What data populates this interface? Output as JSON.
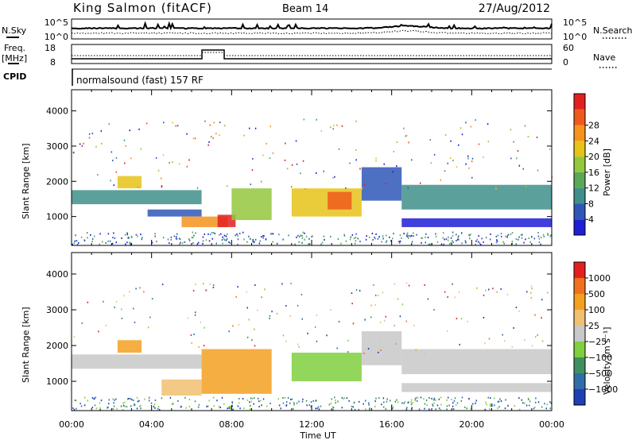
{
  "header": {
    "station": "King Salmon (fitACF)",
    "beam": "Beam 14",
    "date": "27/Aug/2012"
  },
  "nsky_panel": {
    "label_left": "N.Sky",
    "label_right": "N.Search",
    "left_ticks": [
      "10^5",
      "10^0"
    ],
    "right_ticks": [
      "10^5",
      "10^0"
    ]
  },
  "freq_panel": {
    "label_left_1": "Freq.",
    "label_left_2": "[MHz]",
    "label_right": "Nave",
    "left_ticks": [
      "18",
      "8"
    ],
    "right_ticks": [
      "60",
      "0"
    ]
  },
  "cpid": {
    "label": "CPID",
    "text": "normalsound (fast) 157 RF"
  },
  "chart_data": [
    {
      "type": "heatmap",
      "name": "power",
      "ylabel": "Slant Range [km]",
      "ylim": [
        180,
        4600
      ],
      "yticks": [
        "1000",
        "2000",
        "3000",
        "4000"
      ],
      "xlim_hours": [
        0,
        24
      ],
      "xticks": [
        "00:00",
        "04:00",
        "08:00",
        "12:00",
        "16:00",
        "20:00",
        "00:00"
      ],
      "colorbar": {
        "label": "Power [dB]",
        "ticks": [
          "4",
          "8",
          "12",
          "16",
          "20",
          "24",
          "28"
        ],
        "colors": [
          "#1f1fd6",
          "#2f57b8",
          "#3f8f8a",
          "#5aa856",
          "#93c73d",
          "#e6c319",
          "#f5931d",
          "#ef5a1c",
          "#e22020"
        ]
      },
      "regions": [
        {
          "hours": [
            0.0,
            6.5
          ],
          "range_km": [
            1350,
            1750
          ],
          "level": 2
        },
        {
          "hours": [
            2.3,
            3.5
          ],
          "range_km": [
            1800,
            2150
          ],
          "level": 5
        },
        {
          "hours": [
            3.8,
            6.5
          ],
          "range_km": [
            1000,
            1200
          ],
          "level": 1
        },
        {
          "hours": [
            5.5,
            7.8
          ],
          "range_km": [
            700,
            1000
          ],
          "level": 6
        },
        {
          "hours": [
            7.3,
            8.2
          ],
          "range_km": [
            700,
            1050
          ],
          "level": 8
        },
        {
          "hours": [
            8.0,
            10.0
          ],
          "range_km": [
            900,
            1800
          ],
          "level": 4
        },
        {
          "hours": [
            11.0,
            14.5
          ],
          "range_km": [
            1000,
            1800
          ],
          "level": 5
        },
        {
          "hours": [
            12.8,
            14.0
          ],
          "range_km": [
            1200,
            1700
          ],
          "level": 7
        },
        {
          "hours": [
            14.5,
            16.5
          ],
          "range_km": [
            1450,
            2400
          ],
          "level": 1
        },
        {
          "hours": [
            16.5,
            24.0
          ],
          "range_km": [
            1200,
            1900
          ],
          "level": 2
        },
        {
          "hours": [
            16.5,
            24.0
          ],
          "range_km": [
            700,
            950
          ],
          "level": 0
        }
      ]
    },
    {
      "type": "heatmap",
      "name": "velocity",
      "ylabel": "Slant Range [km]",
      "ylim": [
        180,
        4600
      ],
      "yticks": [
        "1000",
        "2000",
        "3000",
        "4000"
      ],
      "xlim_hours": [
        0,
        24
      ],
      "xticks": [
        "00:00",
        "04:00",
        "08:00",
        "12:00",
        "16:00",
        "20:00",
        "00:00"
      ],
      "xlabel": "Time UT",
      "colorbar": {
        "label": "Velocity [m s⁻¹]",
        "ticks": [
          "1000",
          "500",
          "100",
          "25",
          "−25",
          "−100",
          "−500",
          "−1000"
        ],
        "colors": [
          "#1f3fb4",
          "#2f6ea8",
          "#3f8f5f",
          "#7fcf3f",
          "#c8c8c8",
          "#f0c070",
          "#f3a020",
          "#f07020",
          "#e22020"
        ]
      },
      "regions": [
        {
          "hours": [
            0.0,
            6.5
          ],
          "range_km": [
            1350,
            1750
          ],
          "level": 4
        },
        {
          "hours": [
            2.3,
            3.5
          ],
          "range_km": [
            1800,
            2150
          ],
          "level": 6
        },
        {
          "hours": [
            4.5,
            6.5
          ],
          "range_km": [
            600,
            1050
          ],
          "level": 5
        },
        {
          "hours": [
            6.5,
            10.0
          ],
          "range_km": [
            650,
            1900
          ],
          "level": 6
        },
        {
          "hours": [
            11.0,
            14.5
          ],
          "range_km": [
            1000,
            1800
          ],
          "level": 3
        },
        {
          "hours": [
            14.5,
            16.5
          ],
          "range_km": [
            1450,
            2400
          ],
          "level": 4
        },
        {
          "hours": [
            16.5,
            24.0
          ],
          "range_km": [
            1200,
            1900
          ],
          "level": 4
        },
        {
          "hours": [
            16.5,
            24.0
          ],
          "range_km": [
            700,
            950
          ],
          "level": 4
        }
      ]
    }
  ]
}
